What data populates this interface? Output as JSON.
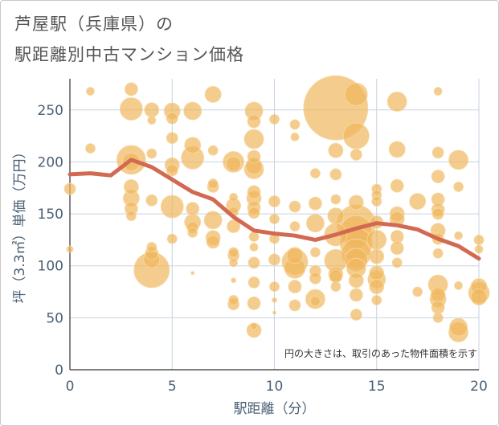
{
  "title_line1": "芦屋駅（兵庫県）の",
  "title_line2": "駅距離別中古マンション価格",
  "note": "円の大きさは、取引のあった物件面積を示す",
  "chart_data": {
    "type": "scatter",
    "xlabel": "駅距離（分）",
    "ylabel": "坪（3.3㎡）単価（万円）",
    "xlim": [
      0,
      20
    ],
    "ylim": [
      0,
      280
    ],
    "x_ticks": [
      0,
      5,
      10,
      15,
      20
    ],
    "y_ticks": [
      0,
      50,
      100,
      150,
      200,
      250
    ],
    "grid": true,
    "colors": {
      "bubble": "#f0b75c",
      "line": "#d26a52",
      "grid": "#c7d3df"
    },
    "series": [
      {
        "type": "bubble",
        "points": [
          [
            0,
            116,
            4
          ],
          [
            0,
            174,
            7
          ],
          [
            1,
            268,
            5
          ],
          [
            1,
            213,
            6
          ],
          [
            3,
            270,
            8
          ],
          [
            3,
            251,
            14
          ],
          [
            3,
            202,
            18
          ],
          [
            3,
            200,
            11
          ],
          [
            3,
            176,
            9
          ],
          [
            3,
            165,
            10
          ],
          [
            3,
            155,
            8
          ],
          [
            3,
            148,
            6
          ],
          [
            4,
            250,
            9
          ],
          [
            4,
            240,
            5
          ],
          [
            4,
            208,
            6
          ],
          [
            4,
            163,
            7
          ],
          [
            4,
            118,
            6
          ],
          [
            4,
            112,
            8
          ],
          [
            4,
            106,
            10
          ],
          [
            4,
            96,
            22
          ],
          [
            5,
            249,
            10
          ],
          [
            5,
            242,
            7
          ],
          [
            5,
            223,
            7
          ],
          [
            5,
            197,
            9
          ],
          [
            5,
            192,
            7
          ],
          [
            5,
            157,
            14
          ],
          [
            5,
            126,
            6
          ],
          [
            6,
            249,
            11
          ],
          [
            6,
            216,
            10
          ],
          [
            6,
            204,
            14
          ],
          [
            6,
            155,
            8
          ],
          [
            6,
            142,
            10
          ],
          [
            6,
            137,
            7
          ],
          [
            6,
            132,
            6
          ],
          [
            6,
            93,
            2
          ],
          [
            7,
            265,
            10
          ],
          [
            7,
            211,
            6
          ],
          [
            7,
            179,
            6
          ],
          [
            7,
            176,
            7
          ],
          [
            7,
            144,
            11
          ],
          [
            7,
            127,
            9
          ],
          [
            7,
            123,
            8
          ],
          [
            8,
            200,
            13
          ],
          [
            8,
            198,
            9
          ],
          [
            8,
            166,
            5
          ],
          [
            8,
            158,
            9
          ],
          [
            8,
            152,
            6
          ],
          [
            8,
            138,
            8
          ],
          [
            8,
            113,
            6
          ],
          [
            8,
            110,
            7
          ],
          [
            8,
            103,
            5
          ],
          [
            8,
            86,
            3
          ],
          [
            8,
            67,
            6
          ],
          [
            8,
            63,
            7
          ],
          [
            9,
            249,
            11
          ],
          [
            9,
            239,
            8
          ],
          [
            9,
            222,
            12
          ],
          [
            9,
            205,
            8
          ],
          [
            9,
            196,
            10
          ],
          [
            9,
            193,
            12
          ],
          [
            9,
            171,
            8
          ],
          [
            9,
            165,
            9
          ],
          [
            9,
            156,
            8
          ],
          [
            9,
            151,
            7
          ],
          [
            9,
            128,
            6
          ],
          [
            9,
            118,
            5
          ],
          [
            9,
            103,
            7
          ],
          [
            9,
            84,
            7
          ],
          [
            9,
            64,
            8
          ],
          [
            9,
            42,
            4
          ],
          [
            9,
            38,
            9
          ],
          [
            10,
            241,
            6
          ],
          [
            10,
            162,
            7
          ],
          [
            10,
            145,
            6
          ],
          [
            10,
            126,
            6
          ],
          [
            10,
            106,
            7
          ],
          [
            10,
            80,
            6
          ],
          [
            10,
            67,
            3
          ],
          [
            10,
            55,
            2
          ],
          [
            11,
            236,
            6
          ],
          [
            11,
            224,
            5
          ],
          [
            11,
            157,
            7
          ],
          [
            11,
            138,
            6
          ],
          [
            11,
            110,
            10
          ],
          [
            11,
            104,
            16
          ],
          [
            11,
            98,
            13
          ],
          [
            11,
            80,
            8
          ],
          [
            11,
            62,
            7
          ],
          [
            12,
            189,
            6
          ],
          [
            12,
            160,
            8
          ],
          [
            12,
            141,
            11
          ],
          [
            12,
            113,
            6
          ],
          [
            12,
            95,
            7
          ],
          [
            12,
            88,
            7
          ],
          [
            12,
            68,
            12
          ],
          [
            12,
            66,
            6
          ],
          [
            13,
            252,
            40
          ],
          [
            13,
            211,
            9
          ],
          [
            13,
            188,
            7
          ],
          [
            13,
            164,
            6
          ],
          [
            13,
            148,
            10
          ],
          [
            13,
            130,
            14
          ],
          [
            13,
            105,
            14
          ],
          [
            13,
            92,
            9
          ],
          [
            13,
            90,
            8
          ],
          [
            13,
            80,
            6
          ],
          [
            14,
            265,
            14
          ],
          [
            14,
            225,
            16
          ],
          [
            14,
            207,
            7
          ],
          [
            14,
            161,
            9
          ],
          [
            14,
            140,
            24
          ],
          [
            14,
            133,
            20
          ],
          [
            14,
            121,
            20
          ],
          [
            14,
            112,
            18
          ],
          [
            14,
            106,
            14
          ],
          [
            14,
            98,
            12
          ],
          [
            14,
            86,
            9
          ],
          [
            14,
            72,
            8
          ],
          [
            14,
            53,
            7
          ],
          [
            15,
            174,
            6
          ],
          [
            15,
            168,
            6
          ],
          [
            15,
            162,
            6
          ],
          [
            15,
            142,
            8
          ],
          [
            15,
            125,
            12
          ],
          [
            15,
            109,
            9
          ],
          [
            15,
            93,
            9
          ],
          [
            15,
            87,
            11
          ],
          [
            15,
            80,
            9
          ],
          [
            15,
            67,
            6
          ],
          [
            16,
            258,
            12
          ],
          [
            16,
            212,
            10
          ],
          [
            16,
            177,
            8
          ],
          [
            16,
            150,
            9
          ],
          [
            16,
            145,
            9
          ],
          [
            16,
            128,
            8
          ],
          [
            16,
            117,
            8
          ],
          [
            16,
            103,
            6
          ],
          [
            17,
            162,
            10
          ],
          [
            17,
            75,
            6
          ],
          [
            18,
            268,
            5
          ],
          [
            18,
            209,
            7
          ],
          [
            18,
            186,
            8
          ],
          [
            18,
            164,
            8
          ],
          [
            18,
            154,
            8
          ],
          [
            18,
            150,
            7
          ],
          [
            18,
            134,
            9
          ],
          [
            18,
            126,
            7
          ],
          [
            18,
            112,
            6
          ],
          [
            18,
            82,
            12
          ],
          [
            18,
            72,
            9
          ],
          [
            18,
            68,
            10
          ],
          [
            18,
            60,
            8
          ],
          [
            18,
            50,
            6
          ],
          [
            19,
            202,
            12
          ],
          [
            19,
            176,
            6
          ],
          [
            19,
            129,
            5
          ],
          [
            19,
            81,
            5
          ],
          [
            19,
            41,
            11
          ],
          [
            19,
            36,
            12
          ],
          [
            20,
            125,
            6
          ],
          [
            20,
            116,
            5
          ],
          [
            20,
            80,
            10
          ],
          [
            20,
            74,
            13
          ],
          [
            20,
            70,
            10
          ]
        ]
      },
      {
        "type": "line",
        "points": [
          [
            0,
            188
          ],
          [
            1,
            189
          ],
          [
            2,
            187
          ],
          [
            3,
            202
          ],
          [
            4,
            195
          ],
          [
            5,
            183
          ],
          [
            6,
            171
          ],
          [
            7,
            164
          ],
          [
            8,
            147
          ],
          [
            9,
            134
          ],
          [
            10,
            131
          ],
          [
            11,
            129
          ],
          [
            12,
            125
          ],
          [
            13,
            130
          ],
          [
            14,
            136
          ],
          [
            15,
            141
          ],
          [
            16,
            139
          ],
          [
            17,
            135
          ],
          [
            18,
            126
          ],
          [
            19,
            119
          ],
          [
            20,
            107
          ]
        ]
      }
    ]
  }
}
